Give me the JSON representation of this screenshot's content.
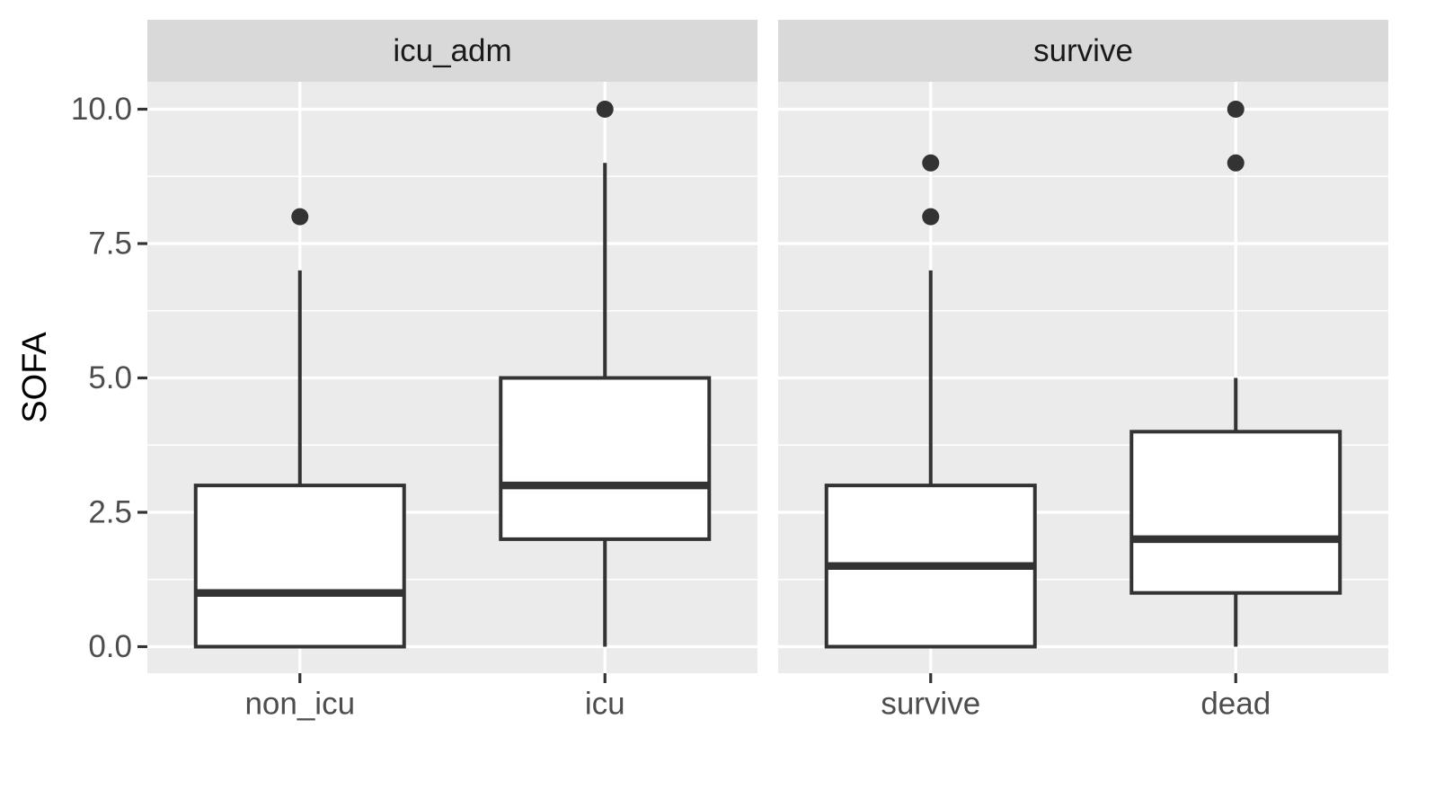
{
  "chart_data": {
    "type": "boxplot",
    "ylabel": "SOFA",
    "xlabel": "",
    "ylim": [
      -0.5,
      11.5
    ],
    "yticks": [
      0,
      2.5,
      5,
      7.5,
      10
    ],
    "ytick_labels": [
      "0.0",
      "2.5",
      "5.0",
      "7.5",
      "10.0"
    ],
    "grid": true,
    "facets": [
      {
        "strip": "icu_adm",
        "categories": [
          "non_icu",
          "icu"
        ],
        "boxes": [
          {
            "category": "non_icu",
            "whisker_low": 0,
            "q1": 0,
            "median": 1,
            "q3": 3,
            "whisker_high": 7,
            "outliers": [
              8
            ]
          },
          {
            "category": "icu",
            "whisker_low": 0,
            "q1": 2,
            "median": 3,
            "q3": 5,
            "whisker_high": 9,
            "outliers": [
              10
            ]
          }
        ]
      },
      {
        "strip": "survive",
        "categories": [
          "survive",
          "dead"
        ],
        "boxes": [
          {
            "category": "survive",
            "whisker_low": 0,
            "q1": 0,
            "median": 1.5,
            "q3": 3,
            "whisker_high": 7,
            "outliers": [
              8,
              9
            ]
          },
          {
            "category": "dead",
            "whisker_low": 0,
            "q1": 1,
            "median": 2,
            "q3": 4,
            "whisker_high": 5,
            "outliers": [
              9,
              10
            ]
          }
        ]
      }
    ],
    "colors": {
      "panel_bg": "#EBEBEB",
      "strip_bg": "#D9D9D9",
      "grid": "#FFFFFF",
      "box_fill": "#FFFFFF",
      "box_line": "#333333",
      "tick_text": "#4D4D4D",
      "strip_text": "#1A1A1A",
      "axis_title": "#000000"
    }
  }
}
